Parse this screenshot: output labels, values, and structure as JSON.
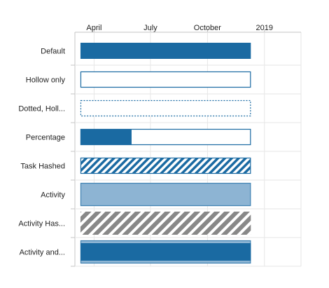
{
  "chart_data": {
    "type": "gantt",
    "x_axis": {
      "type": "date",
      "min": "2018-03-01",
      "max": "2019-03-01",
      "ticks": [
        {
          "label": "April",
          "date": "2018-04-01"
        },
        {
          "label": "July",
          "date": "2018-07-01"
        },
        {
          "label": "October",
          "date": "2018-10-01"
        },
        {
          "label": "2019",
          "date": "2019-01-01"
        }
      ],
      "position": "top",
      "grid": true
    },
    "rows": [
      {
        "label": "Default",
        "start": "2018-03-10",
        "end": "2018-12-10",
        "style": "default",
        "completed": null
      },
      {
        "label": "Hollow only",
        "start": "2018-03-10",
        "end": "2018-12-10",
        "style": "hollow",
        "completed": null
      },
      {
        "label": "Dotted, Holl...",
        "start": "2018-03-10",
        "end": "2018-12-10",
        "style": "dotted-hollow",
        "completed": null
      },
      {
        "label": "Percentage",
        "start": "2018-03-10",
        "end": "2018-12-10",
        "style": "percentage",
        "completed": 0.3
      },
      {
        "label": "Task Hashed",
        "start": "2018-03-10",
        "end": "2018-12-10",
        "style": "hashed",
        "completed": null
      },
      {
        "label": "Activity",
        "start": "2018-03-10",
        "end": "2018-12-10",
        "style": "activity",
        "completed": null
      },
      {
        "label": "Activity Has...",
        "start": "2018-03-10",
        "end": "2018-12-10",
        "style": "activity-hashed",
        "completed": null
      },
      {
        "label": "Activity and...",
        "start": "2018-03-10",
        "end": "2018-12-10",
        "style": "activity-and-task",
        "completed": null
      }
    ],
    "colors": {
      "task": "#1a6aa2",
      "activity_fill": "#8db4d3",
      "activity_border": "#3f82b2",
      "gray_hash": "#888888",
      "grid": "#e6e6e6",
      "axis": "#c4c4c4"
    }
  }
}
